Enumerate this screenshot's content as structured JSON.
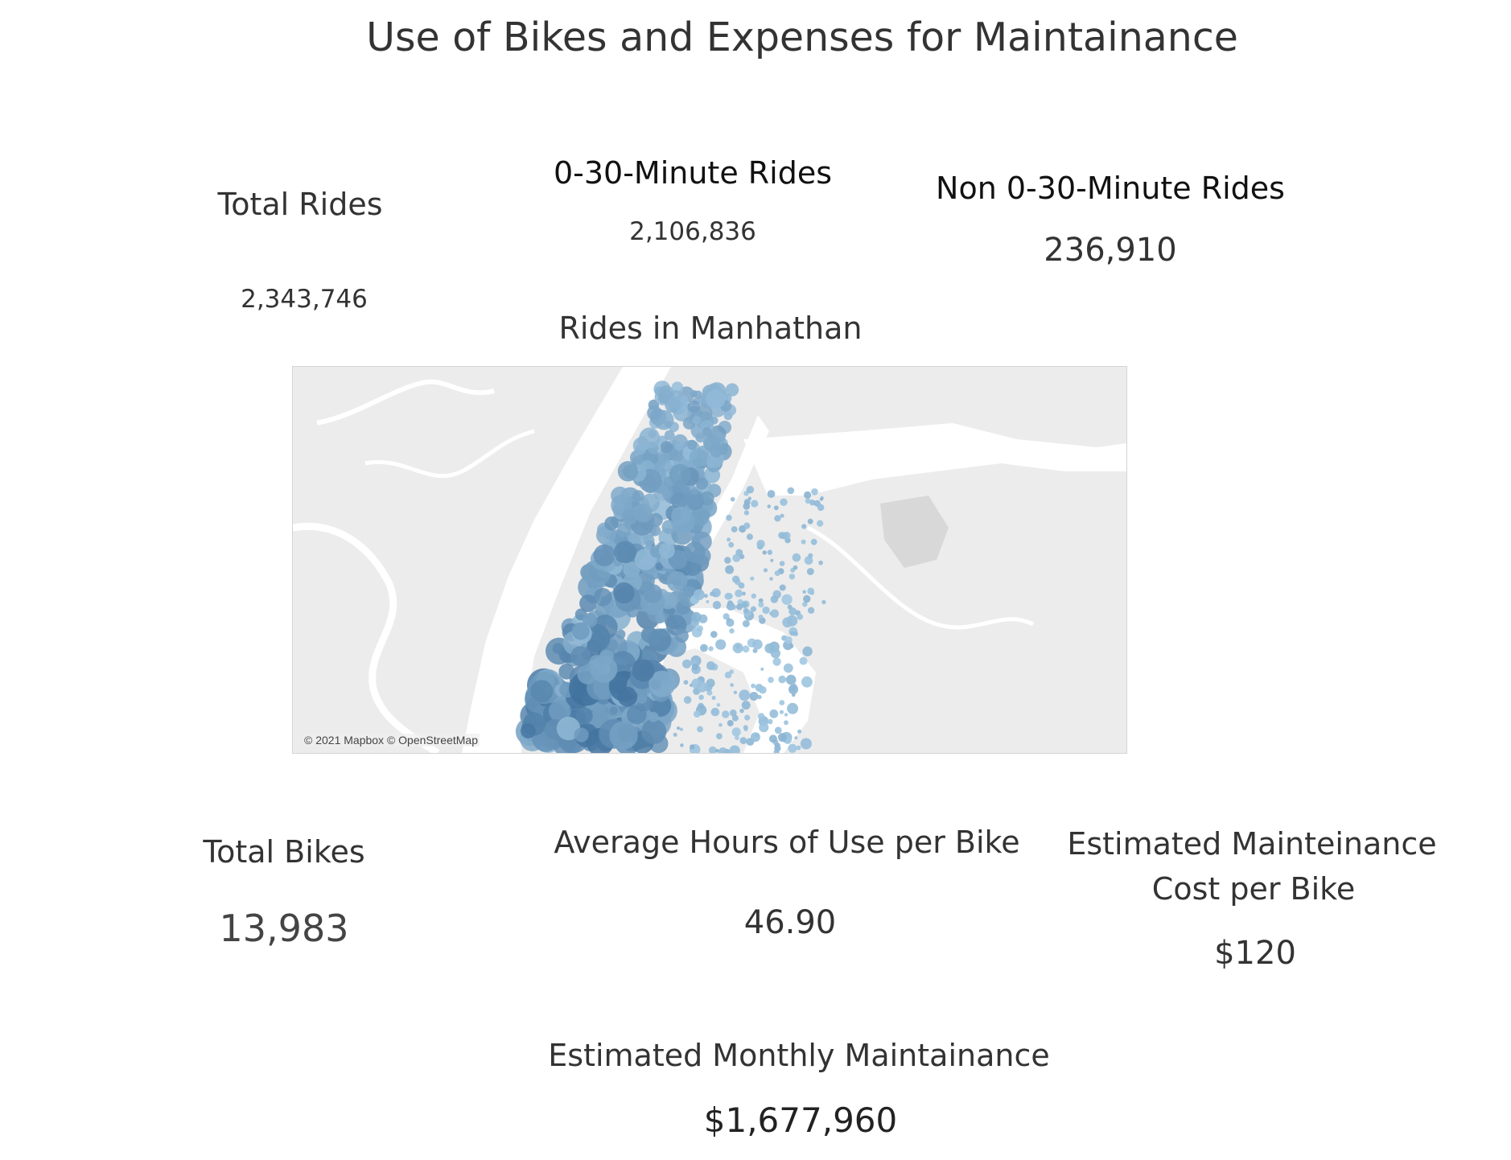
{
  "title": "Use of Bikes and Expenses for Maintainance",
  "kpis": {
    "total_rides": {
      "label": "Total Rides",
      "value": "2,343,746"
    },
    "short_rides": {
      "label": "0-30-Minute Rides",
      "value": "2,106,836"
    },
    "long_rides": {
      "label": "Non 0-30-Minute Rides",
      "value": "236,910"
    },
    "total_bikes": {
      "label": "Total Bikes",
      "value": "13,983"
    },
    "avg_hours": {
      "label": "Average Hours of Use per Bike",
      "value": "46.90"
    },
    "cost_per_bike": {
      "label_line1": "Estimated Mainteinance",
      "label_line2": "Cost per Bike",
      "value": "$120"
    },
    "monthly": {
      "label": "Estimated Monthly Maintainance",
      "value": "$1,677,960"
    }
  },
  "map": {
    "title": "Rides in Manhathan",
    "attribution": "© 2021 Mapbox © OpenStreetMap",
    "land_color": "#ececec",
    "water_color": "#ffffff",
    "marker_color_light": "#a9cfe8",
    "marker_color_dark": "#2c5f8f"
  }
}
